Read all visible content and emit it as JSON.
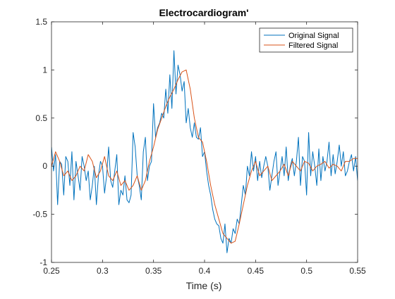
{
  "chart_data": {
    "type": "line",
    "title": "Electrocardiogram'",
    "xlabel": "Time (s)",
    "ylabel": "",
    "xlim": [
      0.25,
      0.55
    ],
    "ylim": [
      -1,
      1.5
    ],
    "xticks": [
      0.25,
      0.3,
      0.35,
      0.4,
      0.45,
      0.5,
      0.55
    ],
    "xtick_labels": [
      "0.25",
      "0.3",
      "0.35",
      "0.4",
      "0.45",
      "0.5",
      "0.55"
    ],
    "yticks": [
      -1,
      -0.5,
      0,
      0.5,
      1,
      1.5
    ],
    "ytick_labels": [
      "-1",
      "-0.5",
      "0",
      "0.5",
      "1",
      "1.5"
    ],
    "grid": false,
    "legend_position": "top-right",
    "series": [
      {
        "name": "Original Signal",
        "color": "#0072BD",
        "x": [
          0.25,
          0.252,
          0.254,
          0.256,
          0.258,
          0.26,
          0.262,
          0.264,
          0.266,
          0.268,
          0.27,
          0.272,
          0.274,
          0.276,
          0.278,
          0.28,
          0.282,
          0.284,
          0.286,
          0.288,
          0.29,
          0.292,
          0.294,
          0.296,
          0.298,
          0.3,
          0.302,
          0.304,
          0.306,
          0.308,
          0.31,
          0.312,
          0.314,
          0.316,
          0.318,
          0.32,
          0.322,
          0.324,
          0.326,
          0.328,
          0.33,
          0.332,
          0.334,
          0.336,
          0.338,
          0.34,
          0.342,
          0.344,
          0.346,
          0.348,
          0.35,
          0.352,
          0.354,
          0.356,
          0.358,
          0.36,
          0.362,
          0.364,
          0.366,
          0.368,
          0.37,
          0.372,
          0.374,
          0.376,
          0.378,
          0.38,
          0.382,
          0.384,
          0.386,
          0.388,
          0.39,
          0.392,
          0.394,
          0.396,
          0.398,
          0.4,
          0.402,
          0.404,
          0.406,
          0.408,
          0.41,
          0.412,
          0.414,
          0.416,
          0.418,
          0.42,
          0.422,
          0.424,
          0.426,
          0.428,
          0.43,
          0.432,
          0.434,
          0.436,
          0.438,
          0.44,
          0.442,
          0.444,
          0.446,
          0.448,
          0.45,
          0.452,
          0.454,
          0.456,
          0.458,
          0.46,
          0.462,
          0.464,
          0.466,
          0.468,
          0.47,
          0.472,
          0.474,
          0.476,
          0.478,
          0.48,
          0.482,
          0.484,
          0.486,
          0.488,
          0.49,
          0.492,
          0.494,
          0.496,
          0.498,
          0.5,
          0.502,
          0.504,
          0.506,
          0.508,
          0.51,
          0.512,
          0.514,
          0.516,
          0.518,
          0.52,
          0.522,
          0.524,
          0.526,
          0.528,
          0.53,
          0.532,
          0.534,
          0.536,
          0.538,
          0.54,
          0.542,
          0.544,
          0.546,
          0.548,
          0.55
        ],
        "y": [
          0.2,
          -0.05,
          0.12,
          -0.4,
          0.05,
          0.02,
          -0.3,
          0.1,
          0.05,
          -0.2,
          0.15,
          -0.35,
          0.05,
          -0.1,
          -0.25,
          0.1,
          0.0,
          -0.15,
          -0.05,
          -0.35,
          -0.2,
          0.0,
          -0.4,
          -0.1,
          0.05,
          0.0,
          -0.28,
          -0.1,
          0.2,
          -0.15,
          -0.22,
          -0.05,
          0.12,
          -0.4,
          -0.25,
          -0.3,
          -0.1,
          -0.35,
          -0.38,
          -0.3,
          0.35,
          0.2,
          -0.1,
          -0.2,
          -0.35,
          0.15,
          0.3,
          -0.15,
          0.0,
          0.05,
          0.65,
          0.3,
          0.4,
          0.45,
          0.55,
          0.5,
          0.8,
          0.55,
          0.95,
          0.6,
          1.2,
          0.75,
          1.05,
          0.95,
          0.78,
          0.88,
          0.45,
          0.6,
          0.4,
          0.3,
          0.45,
          0.3,
          0.28,
          0.4,
          0.1,
          0.15,
          -0.05,
          -0.2,
          -0.3,
          -0.45,
          -0.55,
          -0.6,
          -0.62,
          -0.75,
          -0.8,
          -0.6,
          -0.9,
          -0.75,
          -0.8,
          -0.65,
          -0.7,
          -0.55,
          -0.6,
          -0.4,
          -0.2,
          -0.3,
          0.0,
          -0.1,
          0.15,
          -0.05,
          0.1,
          -0.15,
          0.05,
          -0.12,
          0.0,
          0.1,
          0.0,
          -0.25,
          -0.1,
          0.05,
          0.15,
          -0.2,
          -0.05,
          0.1,
          -0.1,
          0.2,
          -0.15,
          0.0,
          0.08,
          -0.1,
          0.05,
          0.3,
          -0.2,
          0.1,
          0.05,
          -0.3,
          0.35,
          -0.1,
          0.15,
          0.0,
          -0.2,
          0.18,
          -0.15,
          0.1,
          -0.05,
          0.05,
          0.25,
          -0.1,
          0.12,
          -0.08,
          0.05,
          0.22,
          0.0,
          0.15,
          -0.1,
          -0.05,
          0.05,
          0.12,
          -0.05,
          0.1,
          -0.15
        ]
      },
      {
        "name": "Filtered Signal",
        "color": "#D95319",
        "x": [
          0.25,
          0.254,
          0.258,
          0.262,
          0.266,
          0.27,
          0.274,
          0.278,
          0.282,
          0.286,
          0.29,
          0.294,
          0.298,
          0.302,
          0.306,
          0.31,
          0.314,
          0.318,
          0.322,
          0.326,
          0.33,
          0.334,
          0.338,
          0.342,
          0.346,
          0.35,
          0.354,
          0.358,
          0.362,
          0.366,
          0.37,
          0.374,
          0.378,
          0.382,
          0.386,
          0.39,
          0.394,
          0.398,
          0.402,
          0.406,
          0.41,
          0.414,
          0.418,
          0.422,
          0.426,
          0.43,
          0.434,
          0.438,
          0.442,
          0.446,
          0.45,
          0.454,
          0.458,
          0.462,
          0.466,
          0.47,
          0.474,
          0.478,
          0.482,
          0.486,
          0.49,
          0.494,
          0.498,
          0.502,
          0.506,
          0.51,
          0.514,
          0.518,
          0.522,
          0.526,
          0.53,
          0.534,
          0.538,
          0.542,
          0.546,
          0.55
        ],
        "y": [
          0.0,
          0.15,
          0.05,
          -0.1,
          -0.05,
          -0.15,
          -0.1,
          0.0,
          -0.05,
          0.12,
          0.05,
          -0.12,
          -0.05,
          0.1,
          -0.1,
          -0.15,
          -0.05,
          -0.2,
          -0.15,
          -0.25,
          -0.2,
          -0.1,
          -0.25,
          -0.15,
          0.05,
          0.2,
          0.38,
          0.5,
          0.62,
          0.72,
          0.8,
          0.9,
          0.98,
          1.0,
          0.8,
          0.5,
          0.3,
          0.25,
          0.05,
          -0.2,
          -0.4,
          -0.55,
          -0.7,
          -0.75,
          -0.8,
          -0.78,
          -0.6,
          -0.4,
          -0.2,
          -0.05,
          0.05,
          -0.1,
          -0.05,
          0.0,
          -0.15,
          -0.1,
          -0.05,
          0.02,
          -0.1,
          0.05,
          0.0,
          -0.05,
          0.05,
          0.03,
          -0.05,
          0.0,
          0.02,
          0.05,
          -0.02,
          0.02,
          0.0,
          -0.05,
          0.05,
          0.05,
          0.08,
          0.08
        ]
      }
    ]
  }
}
